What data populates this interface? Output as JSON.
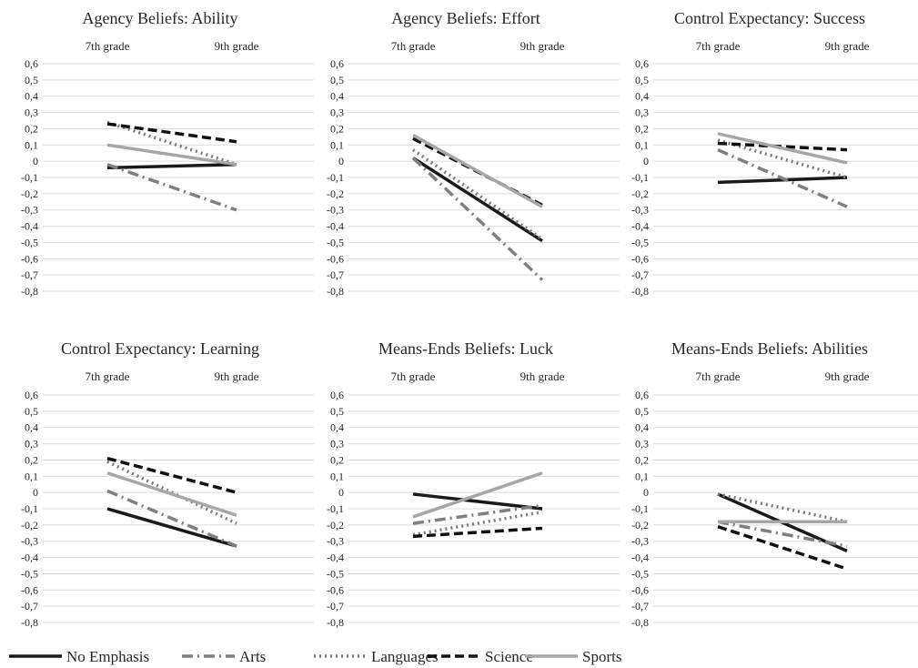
{
  "legend": [
    "No Emphasis",
    "Arts",
    "Languages",
    "Science",
    "Sports"
  ],
  "series_styles": [
    {
      "name": "No Emphasis",
      "color": "#1a1a1a",
      "dash": "none"
    },
    {
      "name": "Arts",
      "color": "#7f7f7f",
      "dash": "dash-dot"
    },
    {
      "name": "Languages",
      "color": "#7a7a7a",
      "dash": "dot"
    },
    {
      "name": "Science",
      "color": "#111111",
      "dash": "dash"
    },
    {
      "name": "Sports",
      "color": "#a6a6a6",
      "dash": "none"
    }
  ],
  "chart_data": [
    {
      "type": "line",
      "title": "Agency Beliefs: Ability",
      "categories": [
        "7th grade",
        "9th grade"
      ],
      "ylim": [
        -0.8,
        0.6
      ],
      "yticks": [
        "0,6",
        "0,5",
        "0,4",
        "0,3",
        "0,2",
        "0,1",
        "0",
        "-0,1",
        "-0,2",
        "-0,3",
        "-0,4",
        "-0,5",
        "-0,6",
        "-0,7",
        "-0,8"
      ],
      "grid": true,
      "series": [
        {
          "name": "No Emphasis",
          "values": [
            -0.04,
            -0.02
          ]
        },
        {
          "name": "Arts",
          "values": [
            -0.02,
            -0.3
          ]
        },
        {
          "name": "Languages",
          "values": [
            0.24,
            -0.02
          ]
        },
        {
          "name": "Science",
          "values": [
            0.23,
            0.12
          ]
        },
        {
          "name": "Sports",
          "values": [
            0.1,
            -0.02
          ]
        }
      ]
    },
    {
      "type": "line",
      "title": "Agency Beliefs: Effort",
      "categories": [
        "7th grade",
        "9th grade"
      ],
      "ylim": [
        -0.8,
        0.6
      ],
      "yticks": [
        "0,6",
        "0,5",
        "0,4",
        "0,3",
        "0,2",
        "0,1",
        "0",
        "-0,1",
        "-0,2",
        "-0,3",
        "-0,4",
        "-0,5",
        "-0,6",
        "-0,7",
        "-0,8"
      ],
      "grid": true,
      "series": [
        {
          "name": "No Emphasis",
          "values": [
            0.02,
            -0.49
          ]
        },
        {
          "name": "Arts",
          "values": [
            0.02,
            -0.73
          ]
        },
        {
          "name": "Languages",
          "values": [
            0.07,
            -0.48
          ]
        },
        {
          "name": "Science",
          "values": [
            0.14,
            -0.27
          ]
        },
        {
          "name": "Sports",
          "values": [
            0.16,
            -0.28
          ]
        }
      ]
    },
    {
      "type": "line",
      "title": "Control Expectancy: Success",
      "categories": [
        "7th grade",
        "9th grade"
      ],
      "ylim": [
        -0.8,
        0.6
      ],
      "yticks": [
        "0,6",
        "0,5",
        "0,4",
        "0,3",
        "0,2",
        "0,1",
        "0",
        "-0,1",
        "-0,2",
        "-0,3",
        "-0,4",
        "-0,5",
        "-0,6",
        "-0,7",
        "-0,8"
      ],
      "grid": true,
      "series": [
        {
          "name": "No Emphasis",
          "values": [
            -0.13,
            -0.1
          ]
        },
        {
          "name": "Arts",
          "values": [
            0.07,
            -0.28
          ]
        },
        {
          "name": "Languages",
          "values": [
            0.13,
            -0.1
          ]
        },
        {
          "name": "Science",
          "values": [
            0.11,
            0.07
          ]
        },
        {
          "name": "Sports",
          "values": [
            0.17,
            -0.01
          ]
        }
      ]
    },
    {
      "type": "line",
      "title": "Control Expectancy: Learning",
      "categories": [
        "7th grade",
        "9th grade"
      ],
      "ylim": [
        -0.8,
        0.6
      ],
      "yticks": [
        "0,6",
        "0,5",
        "0,4",
        "0,3",
        "0,2",
        "0,1",
        "0",
        "-0,1",
        "-0,2",
        "-0,3",
        "-0,4",
        "-0,5",
        "-0,6",
        "-0,7",
        "-0,8"
      ],
      "grid": true,
      "series": [
        {
          "name": "No Emphasis",
          "values": [
            -0.1,
            -0.33
          ]
        },
        {
          "name": "Arts",
          "values": [
            0.01,
            -0.33
          ]
        },
        {
          "name": "Languages",
          "values": [
            0.19,
            -0.19
          ]
        },
        {
          "name": "Science",
          "values": [
            0.21,
            0.0
          ]
        },
        {
          "name": "Sports",
          "values": [
            0.12,
            -0.14
          ]
        }
      ]
    },
    {
      "type": "line",
      "title": "Means-Ends Beliefs: Luck",
      "categories": [
        "7th grade",
        "9th grade"
      ],
      "ylim": [
        -0.8,
        0.6
      ],
      "yticks": [
        "0,6",
        "0,5",
        "0,4",
        "0,3",
        "0,2",
        "0,1",
        "0",
        "-0,1",
        "-0,2",
        "-0,3",
        "-0,4",
        "-0,5",
        "-0,6",
        "-0,7",
        "-0,8"
      ],
      "grid": true,
      "series": [
        {
          "name": "No Emphasis",
          "values": [
            -0.01,
            -0.1
          ]
        },
        {
          "name": "Arts",
          "values": [
            -0.19,
            -0.08
          ]
        },
        {
          "name": "Languages",
          "values": [
            -0.26,
            -0.12
          ]
        },
        {
          "name": "Science",
          "values": [
            -0.27,
            -0.22
          ]
        },
        {
          "name": "Sports",
          "values": [
            -0.15,
            0.12
          ]
        }
      ]
    },
    {
      "type": "line",
      "title": "Means-Ends Beliefs: Abilities",
      "categories": [
        "7th grade",
        "9th grade"
      ],
      "ylim": [
        -0.8,
        0.6
      ],
      "yticks": [
        "0,6",
        "0,5",
        "0,4",
        "0,3",
        "0,2",
        "0,1",
        "0",
        "-0,1",
        "-0,2",
        "-0,3",
        "-0,4",
        "-0,5",
        "-0,6",
        "-0,7",
        "-0,8"
      ],
      "grid": true,
      "series": [
        {
          "name": "No Emphasis",
          "values": [
            -0.01,
            -0.36
          ]
        },
        {
          "name": "Arts",
          "values": [
            -0.18,
            -0.33
          ]
        },
        {
          "name": "Languages",
          "values": [
            -0.01,
            -0.18
          ]
        },
        {
          "name": "Science",
          "values": [
            -0.21,
            -0.47
          ]
        },
        {
          "name": "Sports",
          "values": [
            -0.18,
            -0.18
          ]
        }
      ]
    }
  ]
}
